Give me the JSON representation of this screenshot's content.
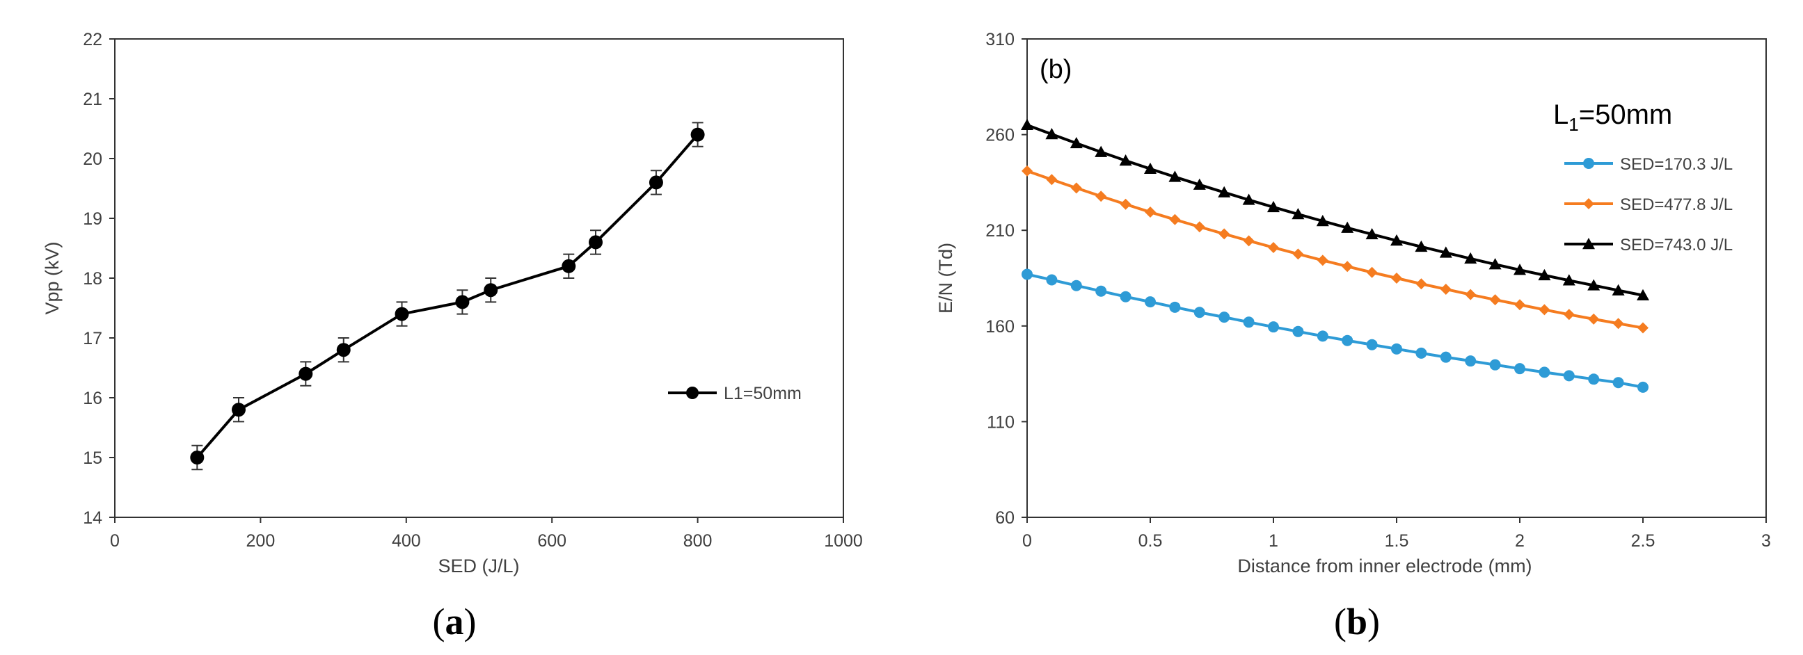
{
  "chart_data": [
    {
      "id": "a",
      "type": "line",
      "caption_open": "(",
      "caption_letter": "a",
      "caption_close": ")",
      "title": "",
      "xlabel": "SED (J/L)",
      "ylabel": "Vpp (kV)",
      "xlim": [
        0,
        1000
      ],
      "ylim": [
        14,
        22
      ],
      "xticks": [
        0,
        200,
        400,
        600,
        800,
        1000
      ],
      "yticks": [
        14,
        15,
        16,
        17,
        18,
        19,
        20,
        21,
        22
      ],
      "legend_position": "right-middle",
      "series": [
        {
          "name": "L1=50mm",
          "color": "#000000",
          "marker": "circle",
          "error_bar": 0.2,
          "x": [
            113,
            170,
            262,
            314,
            394,
            477,
            516,
            623,
            660,
            743,
            800
          ],
          "y": [
            15.0,
            15.8,
            16.4,
            16.8,
            17.4,
            17.6,
            17.8,
            18.2,
            18.6,
            19.6,
            20.4
          ]
        }
      ]
    },
    {
      "id": "b",
      "type": "line",
      "caption_open": "(",
      "caption_letter": "b",
      "caption_close": ")",
      "panel_label": "(b)",
      "annotation_main": "L",
      "annotation_sub": "1",
      "annotation_rest": "=50mm",
      "xlabel": "Distance from inner electrode (mm)",
      "ylabel": "E/N (Td)",
      "xlim": [
        0,
        3
      ],
      "ylim": [
        60,
        310
      ],
      "xticks": [
        0,
        0.5,
        1,
        1.5,
        2,
        2.5,
        3
      ],
      "yticks": [
        60,
        110,
        160,
        210,
        260,
        310
      ],
      "legend_position": "top-right",
      "series": [
        {
          "name": "SED=170.3 J/L",
          "color": "#2E9BD6",
          "marker": "circle",
          "x": [
            0,
            0.1,
            0.2,
            0.3,
            0.4,
            0.5,
            0.6,
            0.7,
            0.8,
            0.9,
            1.0,
            1.1,
            1.2,
            1.3,
            1.4,
            1.5,
            1.6,
            1.7,
            1.8,
            1.9,
            2.0,
            2.1,
            2.2,
            2.3,
            2.4,
            2.5
          ],
          "y": [
            187.0,
            184.1,
            181.1,
            178.2,
            175.3,
            172.6,
            169.8,
            167.1,
            164.6,
            162.0,
            159.5,
            157.1,
            154.7,
            152.4,
            150.2,
            148.0,
            145.8,
            143.7,
            141.7,
            139.7,
            137.7,
            135.8,
            134.0,
            132.2,
            130.4,
            128.0
          ]
        },
        {
          "name": "SED=477.8 J/L",
          "color": "#F57C20",
          "marker": "diamond",
          "x": [
            0,
            0.1,
            0.2,
            0.3,
            0.4,
            0.5,
            0.6,
            0.7,
            0.8,
            0.9,
            1.0,
            1.1,
            1.2,
            1.3,
            1.4,
            1.5,
            1.6,
            1.7,
            1.8,
            1.9,
            2.0,
            2.1,
            2.2,
            2.3,
            2.4,
            2.5
          ],
          "y": [
            241.0,
            236.5,
            232.1,
            227.8,
            223.6,
            219.5,
            215.6,
            211.8,
            208.1,
            204.5,
            201.0,
            197.6,
            194.3,
            191.1,
            188.0,
            185.0,
            182.0,
            179.2,
            176.4,
            173.7,
            171.1,
            168.5,
            166.0,
            163.6,
            161.3,
            159.0
          ]
        },
        {
          "name": "SED=743.0 J/L",
          "color": "#000000",
          "marker": "triangle",
          "x": [
            0,
            0.1,
            0.2,
            0.3,
            0.4,
            0.5,
            0.6,
            0.7,
            0.8,
            0.9,
            1.0,
            1.1,
            1.2,
            1.3,
            1.4,
            1.5,
            1.6,
            1.7,
            1.8,
            1.9,
            2.0,
            2.1,
            2.2,
            2.3,
            2.4,
            2.5
          ],
          "y": [
            265.0,
            260.2,
            255.5,
            250.9,
            246.4,
            242.1,
            237.9,
            233.8,
            229.8,
            225.9,
            222.1,
            218.4,
            214.8,
            211.3,
            207.9,
            204.6,
            201.4,
            198.3,
            195.2,
            192.2,
            189.3,
            186.5,
            183.8,
            181.2,
            178.6,
            176.0
          ]
        }
      ]
    }
  ]
}
